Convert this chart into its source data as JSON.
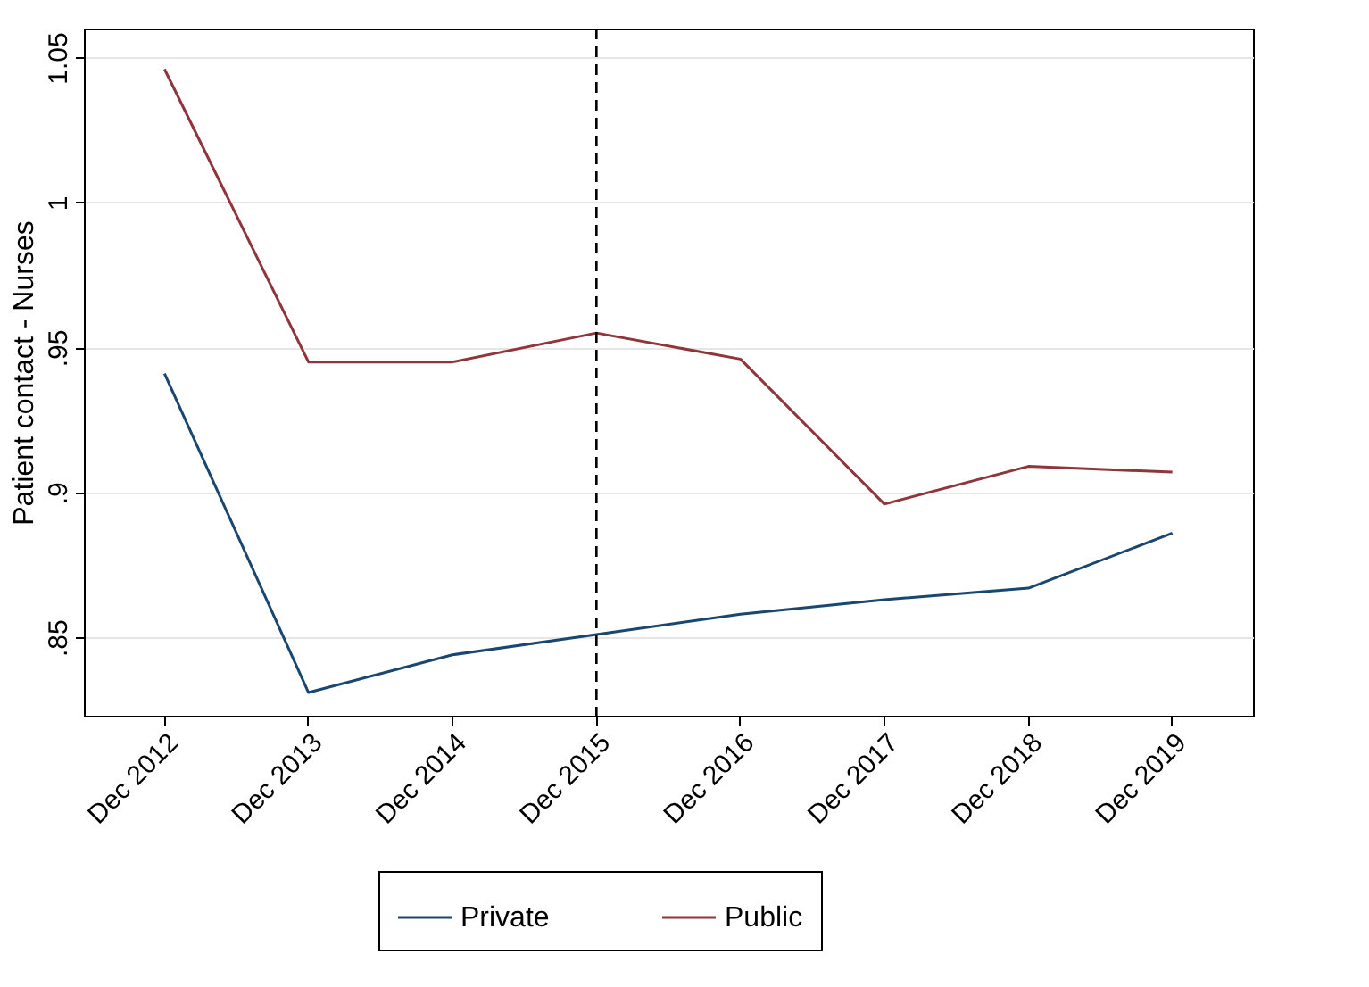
{
  "chart_data": {
    "type": "line",
    "ylabel": "Patient contact - Nurses",
    "categories": [
      "Dec 2012",
      "Dec 2013",
      "Dec 2014",
      "Dec 2015",
      "Dec 2016",
      "Dec 2017",
      "Dec 2018",
      "Dec 2019"
    ],
    "series": [
      {
        "name": "Private",
        "color": "#1a476f",
        "values": [
          0.941,
          0.831,
          0.844,
          0.851,
          0.858,
          0.863,
          0.867,
          0.886
        ]
      },
      {
        "name": "Public",
        "color": "#90353b",
        "values": [
          1.046,
          0.945,
          0.945,
          0.955,
          0.946,
          0.896,
          0.909,
          0.907
        ]
      }
    ],
    "ylim": [
      0.823,
      1.06
    ],
    "yticks": [
      {
        "value": 0.85,
        "label": ".85"
      },
      {
        "value": 0.9,
        "label": ".9"
      },
      {
        "value": 0.95,
        "label": ".95"
      },
      1,
      1.05
    ],
    "ref_lines": [
      {
        "axis": "x",
        "value": "Dec 2015",
        "line_style": "dashed",
        "color": "#000000"
      }
    ],
    "grid": "y",
    "legend": "bottom",
    "marker": "none",
    "line_style": "solid"
  }
}
